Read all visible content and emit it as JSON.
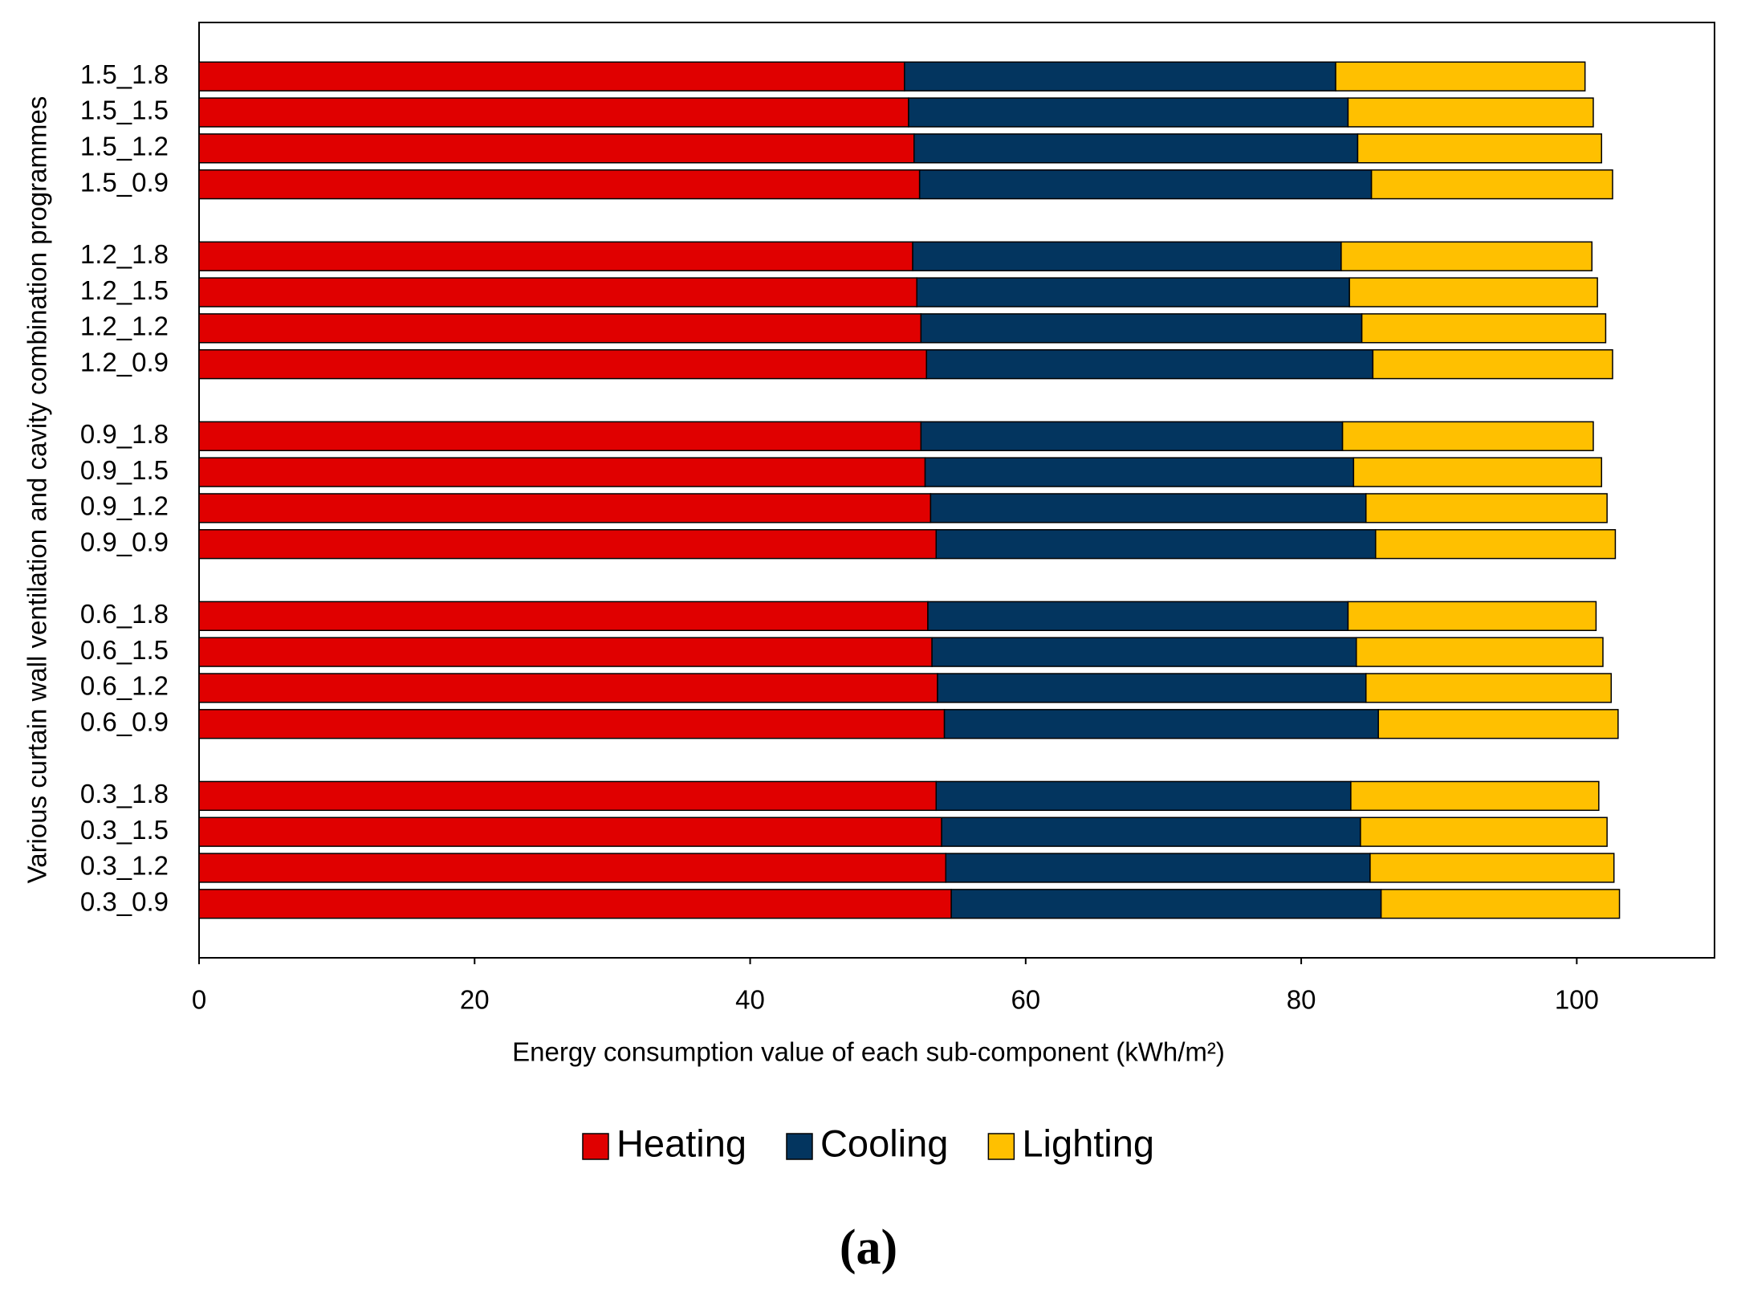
{
  "chart_data": {
    "type": "stacked_barh",
    "x_label": "Energy consumption value of each sub-component (kWh/m²)",
    "y_label": "Various curtain wall ventilation and cavity combination programmes",
    "categories": [
      "1.5_1.8",
      "1.5_1.5",
      "1.5_1.2",
      "1.5_0.9",
      null,
      "1.2_1.8",
      "1.2_1.5",
      "1.2_1.2",
      "1.2_0.9",
      null,
      "0.9_1.8",
      "0.9_1.5",
      "0.9_1.2",
      "0.9_0.9",
      null,
      "0.6_1.8",
      "0.6_1.5",
      "0.6_1.2",
      "0.6_0.9",
      null,
      "0.3_1.8",
      "0.3_1.5",
      "0.3_1.2",
      "0.3_0.9"
    ],
    "series": [
      {
        "name": "Heating",
        "color": "#e00000",
        "values": [
          51.2,
          51.5,
          51.9,
          52.3,
          null,
          51.8,
          52.1,
          52.4,
          52.8,
          null,
          52.4,
          52.7,
          53.1,
          53.5,
          null,
          52.9,
          53.2,
          53.6,
          54.1,
          null,
          53.5,
          53.9,
          54.2,
          54.6
        ]
      },
      {
        "name": "Cooling",
        "color": "#03355f",
        "values": [
          31.3,
          31.9,
          32.2,
          32.8,
          null,
          31.1,
          31.4,
          32.0,
          32.4,
          null,
          30.6,
          31.1,
          31.6,
          31.9,
          null,
          30.5,
          30.8,
          31.1,
          31.5,
          null,
          30.1,
          30.4,
          30.8,
          31.2
        ]
      },
      {
        "name": "Lighting",
        "color": "#ffc000",
        "values": [
          18.1,
          17.8,
          17.7,
          17.5,
          null,
          18.2,
          18.0,
          17.7,
          17.4,
          null,
          18.2,
          18.0,
          17.5,
          17.4,
          null,
          18.0,
          17.9,
          17.8,
          17.4,
          null,
          18.0,
          17.9,
          17.7,
          17.3
        ]
      }
    ],
    "xlim": [
      0,
      110
    ],
    "xticks": [
      0,
      20,
      40,
      60,
      80,
      100
    ],
    "legend": "bottom"
  },
  "panel_label": "(a)"
}
